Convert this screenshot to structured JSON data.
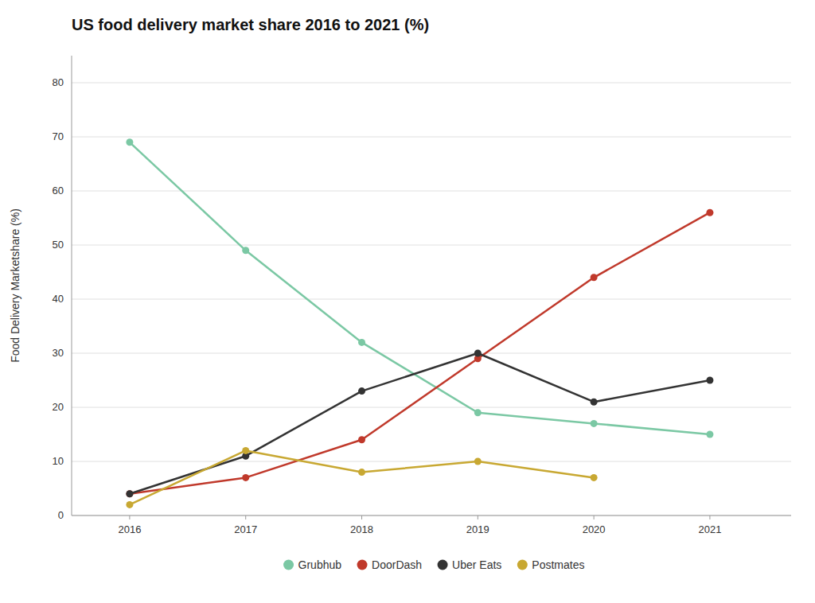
{
  "chart_data": {
    "type": "line",
    "title": "US food delivery market share 2016 to 2021 (%)",
    "ylabel": "Food Delivery Marketshare (%)",
    "x": [
      2016,
      2017,
      2018,
      2019,
      2020,
      2021
    ],
    "series": [
      {
        "name": "Grubhub",
        "color": "#7bc8a4",
        "marker": "circle",
        "values": [
          69,
          49,
          32,
          19,
          17,
          15
        ]
      },
      {
        "name": "DoorDash",
        "color": "#c0392b",
        "marker": "circle",
        "values": [
          4,
          7,
          14,
          29,
          44,
          56
        ]
      },
      {
        "name": "Uber Eats",
        "color": "#333333",
        "marker": "circle",
        "values": [
          4,
          11,
          23,
          30,
          21,
          25
        ]
      },
      {
        "name": "Postmates",
        "color": "#c8a832",
        "marker": "circle",
        "values": [
          2,
          12,
          8,
          10,
          7,
          null
        ]
      }
    ],
    "xlim": [
      2015.5,
      2021.7
    ],
    "xticks": [
      2016,
      2017,
      2018,
      2019,
      2020,
      2021
    ],
    "ylim": [
      0,
      85
    ],
    "yticks": [
      0,
      10,
      20,
      30,
      40,
      50,
      60,
      70,
      80
    ],
    "grid": true,
    "legend": "bottom"
  }
}
